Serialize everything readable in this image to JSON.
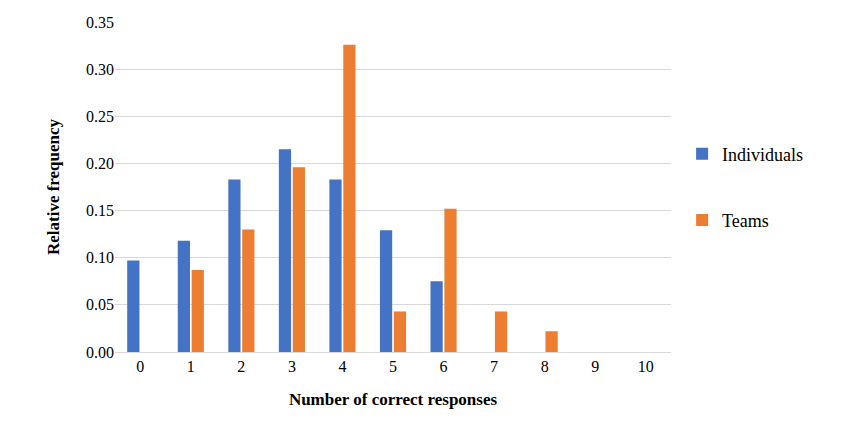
{
  "chart_data": {
    "type": "bar",
    "x_label": "Number of correct responses",
    "y_label": "Relative frequency",
    "categories": [
      "0",
      "1",
      "2",
      "3",
      "4",
      "5",
      "6",
      "7",
      "8",
      "9",
      "10"
    ],
    "series": [
      {
        "name": "Individuals",
        "color": "#4472c4",
        "values": [
          0.097,
          0.118,
          0.183,
          0.215,
          0.183,
          0.129,
          0.075,
          0,
          0,
          0,
          0
        ]
      },
      {
        "name": "Teams",
        "color": "#ed7d31",
        "values": [
          0,
          0.087,
          0.13,
          0.196,
          0.326,
          0.043,
          0.152,
          0.043,
          0.022,
          0,
          0
        ]
      }
    ],
    "ylim": [
      0,
      0.35
    ],
    "yticks": [
      {
        "value": 0,
        "label": "0.00"
      },
      {
        "value": 0.05,
        "label": "0.05"
      },
      {
        "value": 0.1,
        "label": "0.10"
      },
      {
        "value": 0.15,
        "label": "0.15"
      },
      {
        "value": 0.2,
        "label": "0.20"
      },
      {
        "value": 0.25,
        "label": "0.25"
      },
      {
        "value": 0.3,
        "label": "0.30"
      },
      {
        "value": 0.35,
        "label": "0.35"
      }
    ],
    "grid": true,
    "legend": "right"
  }
}
